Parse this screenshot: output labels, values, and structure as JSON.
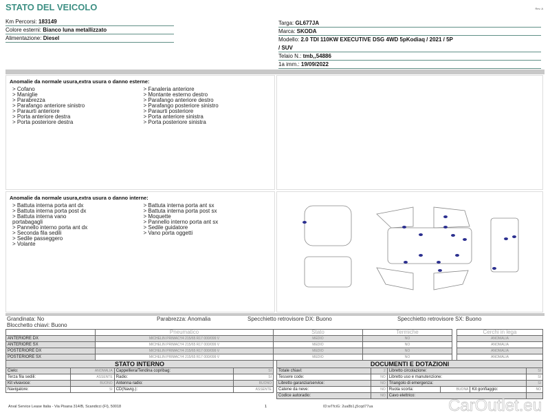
{
  "title": "STATO DEL VEICOLO",
  "rev": "Rev. A",
  "vehicle_left": [
    {
      "label": "Km Percorsi: ",
      "value": "183149"
    },
    {
      "label": "Colore esterni: ",
      "value": "Bianco luna metallizzato"
    },
    {
      "label": "Alimentazione: ",
      "value": "Diesel"
    }
  ],
  "vehicle_right": {
    "targa_label": "Targa: ",
    "targa": "GL677JA",
    "marca_label": "Marca: ",
    "marca": "SKODA",
    "modello_label": "Modello: ",
    "modello": "2.0 TDI 110KW EXECUTIVE DSG 4WD 5pKodiaq / 2021 / 5P",
    "modello_cont": "/ SUV",
    "telaio_label": "Telaio N.: ",
    "telaio": "tmb,,54886",
    "imm_label": "1a imm.: ",
    "imm": "19/09/2022"
  },
  "exterior": {
    "heading": "Anomalie da normale usura,extra usura o danno esterne:",
    "col1": [
      "> Cofano",
      "> Maniglie",
      "> Parabrezza",
      "> Parafango anteriore sinistro",
      "> Paraurti anteriore",
      "> Porta anteriore destra",
      "> Porta posteriore destra"
    ],
    "col2": [
      "> Fanaleria anteriore",
      "> Montante esterno destro",
      "> Parafango anteriore destro",
      "> Parafango posteriore sinistro",
      "> Paraurti posteriore",
      "> Porta anteriore sinistra",
      "> Porta posteriore sinistra"
    ]
  },
  "interior": {
    "heading": "Anomalie da normale usura,extra usura o danno interne:",
    "col1": [
      "> Battuta interna porta ant dx",
      "> Battuta interna porta post dx",
      "> Battuta interna vano",
      "portabagagli",
      "> Pannello interno porta ant dx",
      "> Seconda fila sedili",
      "> Sedile passeggero",
      "> Volante"
    ],
    "col2": [
      "> Battuta interna porta ant sx",
      "> Battuta interna porta post sx",
      "> Moquette",
      "> Pannello interno porta ant sx",
      "> Sedile guidatore",
      "> Vano porta oggetti"
    ]
  },
  "status": {
    "grandinata": "Grandinata: No",
    "blocchetto": "Blocchetto chiavi: Buono",
    "parabrezza": "Parabrezza: Anomalia",
    "spec_dx": "Specchietto retrovisore DX: Buono",
    "spec_sx": "Specchietto retrovisore SX: Buono"
  },
  "tyres": {
    "headers": [
      "Pneumatico",
      "Stato",
      "Termiche"
    ],
    "cerchi_header": "Cerchi in lega",
    "rows": [
      {
        "pos": "ANTERIORE DX",
        "tyre": "MICHELIN PRIMACY4 215/65 R17 000/099 V",
        "stato": "MEDIO",
        "termiche": "NO",
        "cerchi": "ANOMALIA"
      },
      {
        "pos": "ANTERIORE SX",
        "tyre": "MICHELIN PRIMACY4 215/65 R17 000/099 V",
        "stato": "MEDIO",
        "termiche": "NO",
        "cerchi": "ANOMALIA"
      },
      {
        "pos": "POSTERIORE DX",
        "tyre": "MICHELIN PRIMACY4 215/65 R17 000/099 V",
        "stato": "MEDIO",
        "termiche": "NO",
        "cerchi": "ANOMALIA"
      },
      {
        "pos": "POSTERIORE SX",
        "tyre": "MICHELIN PRIMACY4 215/65 R17 000/099 V",
        "stato": "MEDIO",
        "termiche": "NO",
        "cerchi": "ANOMALIA"
      }
    ]
  },
  "stato_interno": {
    "title": "STATO INTERNO",
    "rows": [
      [
        "Cielo:",
        "ANOMALIA",
        "Cappelliera/Tendina copribag:",
        "SI"
      ],
      [
        "Terza fila sedili:",
        "ASSENTE",
        "Radio:",
        "SI"
      ],
      [
        "Kit vivavoce:",
        "BUONO",
        "Antenna radio:",
        "BUONO"
      ],
      [
        "Navigatore:",
        "SI",
        "CD(Navig.):",
        "ASSENTE"
      ]
    ]
  },
  "documenti": {
    "title": "DOCUMENTI E DOTAZIONI",
    "rows": [
      [
        "Totale chiavi:",
        "2",
        "Libretto circolazione:",
        "SI"
      ],
      [
        "Tessere code:",
        "NO",
        "Libretto uso e manutenzione:",
        "SI"
      ],
      [
        "Libretto garanzia/service:",
        "NO",
        "Triangolo di emergenza:",
        "SI"
      ],
      [
        "Catene da neve:",
        "NO",
        "Ruota scorta:",
        "BUONA",
        "Kit gonfiaggio:",
        "NO"
      ],
      [
        "Codice autoradio:",
        "NO",
        "Cavo elettrico:",
        ""
      ]
    ]
  },
  "footer": {
    "address": "Arval Service Lease Italia - Via Pisana 314/B, Scandicci (FI), 50018",
    "page": "1",
    "doc_id": "ID:wTfciG: 2ua8b1,j5cqd77ua"
  },
  "watermark": "CarOutlet.eu",
  "colors": {
    "title": "#3d8f83",
    "damage_dot": "#2b2f8f"
  }
}
